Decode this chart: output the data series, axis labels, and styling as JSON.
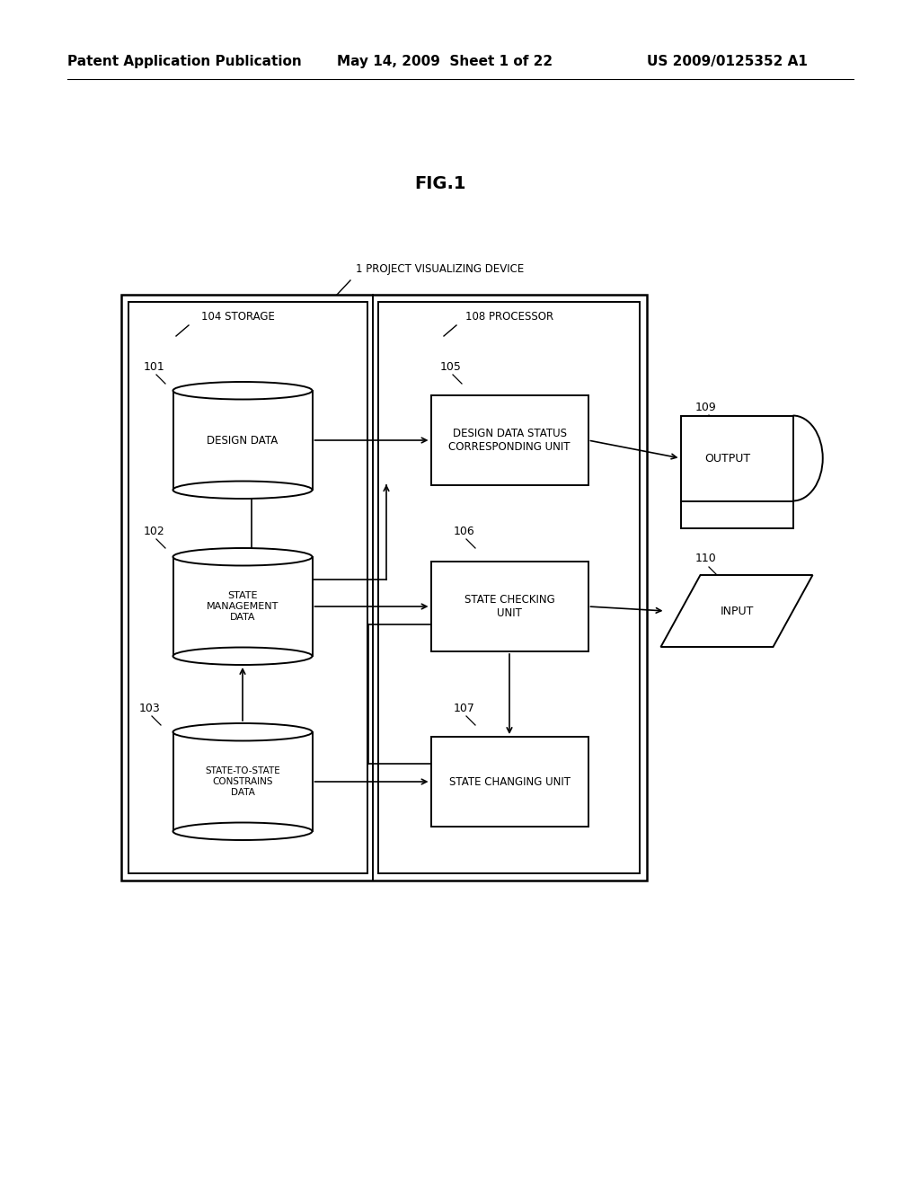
{
  "bg_color": "#ffffff",
  "header_left": "Patent Application Publication",
  "header_mid": "May 14, 2009  Sheet 1 of 22",
  "header_right": "US 2009/0125352 A1",
  "fig_label": "FIG.1",
  "outer_label": "1 PROJECT VISUALIZING DEVICE",
  "storage_label": "104 STORAGE",
  "processor_label": "108 PROCESSOR",
  "line_color": "#000000",
  "text_color": "#000000"
}
